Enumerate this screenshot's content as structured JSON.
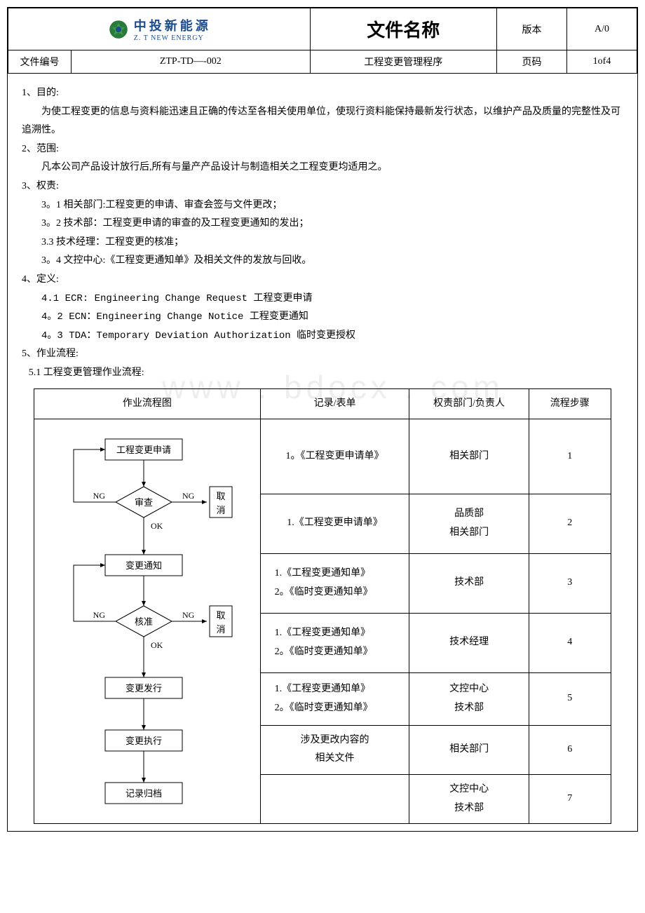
{
  "header": {
    "logo_cn": "中投新能源",
    "logo_en": "Z. T NEW ENERGY",
    "title": "文件名称",
    "subtitle": "工程变更管理程序",
    "doc_no_label": "文件编号",
    "doc_no_value": "ZTP-TD—-002",
    "version_label": "版本",
    "version_value": "A/0",
    "page_label": "页码",
    "page_value": "1of4"
  },
  "sections": {
    "s1_title": "1、目的:",
    "s1_body": "为使工程变更的信息与资料能迅速且正确的传达至各相关使用单位，使现行资料能保持最新发行状态，以维护产品及质量的完整性及可追溯性。",
    "s2_title": "2、范围:",
    "s2_body": "凡本公司产品设计放行后,所有与量产产品设计与制造相关之工程变更均适用之。",
    "s3_title": "3、权责:",
    "s3_1": "3。1 相关部门:工程变更的申请、审查会签与文件更改；",
    "s3_2": "3。2 技术部：工程变更申请的审查的及工程变更通知的发出；",
    "s3_3": "3.3 技术经理：工程变更的核准；",
    "s3_4": "3。4 文控中心:《工程变更通知单》及相关文件的发放与回收。",
    "s4_title": "4、定义:",
    "s4_1": "4.1 ECR: Engineering Change Request 工程变更申请",
    "s4_2": "4。2 ECN：Engineering Change Notice 工程变更通知",
    "s4_3": "4。3 TDA：Temporary Deviation Authorization 临时变更授权",
    "s5_title": "5、作业流程:",
    "s5_1": "5.1 工程变更管理作业流程:"
  },
  "watermark": "www . bdocx . com",
  "flow_table": {
    "headers": [
      "作业流程图",
      "记录/表单",
      "权责部门/负责人",
      "流程步骤"
    ],
    "rows": [
      {
        "record": "1。《工程变更申请单》",
        "dept": "相关部门",
        "step": "1"
      },
      {
        "record": "1.《工程变更申请单》",
        "dept": "品质部\n相关部门",
        "step": "2"
      },
      {
        "record": "1.《工程变更通知单》\n2。《临时变更通知单》",
        "dept": "技术部",
        "step": "3"
      },
      {
        "record": "1.《工程变更通知单》\n2。《临时变更通知单》",
        "dept": "技术经理",
        "step": "4"
      },
      {
        "record": "1.《工程变更通知单》\n2。《临时变更通知单》",
        "dept": "文控中心\n技术部",
        "step": "5"
      },
      {
        "record": "涉及更改内容的\n相关文件",
        "dept": "相关部门",
        "step": "6"
      },
      {
        "record": "",
        "dept": "文控中心\n技术部",
        "step": "7"
      }
    ]
  },
  "flowchart": {
    "nodes": {
      "n1": "工程变更申请",
      "n2": "审查",
      "n3": "变更通知",
      "n4": "核准",
      "n5": "变更发行",
      "n6": "变更执行",
      "n7": "记录归档",
      "cancel": "取\n消"
    },
    "labels": {
      "ng": "NG",
      "ok": "OK"
    },
    "style": {
      "box_fill": "#ffffff",
      "box_stroke": "#000000",
      "line_stroke": "#000000",
      "font_size": 13
    }
  }
}
